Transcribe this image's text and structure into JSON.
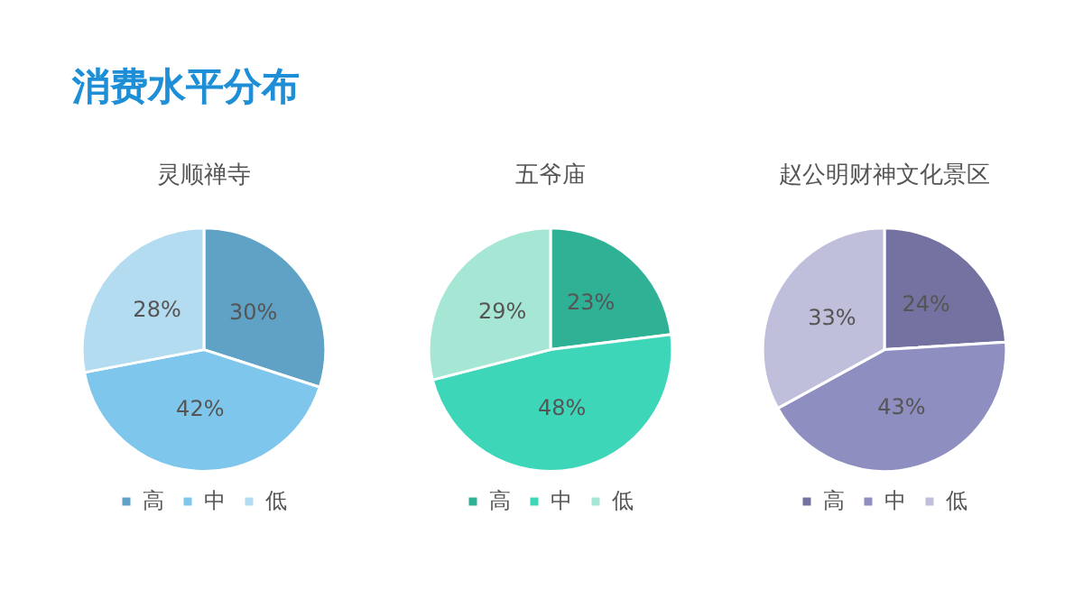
{
  "chart_data": [
    {
      "type": "pie",
      "title": "灵顺禅寺",
      "annotations": [
        "消费水平分布"
      ],
      "categories": [
        "高",
        "中",
        "低"
      ],
      "values": [
        30,
        42,
        28
      ],
      "value_labels": [
        "30%",
        "42%",
        "28%"
      ],
      "colors": [
        "#5fa2c6",
        "#7fc6ec",
        "#b4dcf0"
      ],
      "legend": "bottom"
    },
    {
      "type": "pie",
      "title": "五爷庙",
      "categories": [
        "高",
        "中",
        "低"
      ],
      "values": [
        23,
        48,
        29
      ],
      "value_labels": [
        "23%",
        "48%",
        "29%"
      ],
      "colors": [
        "#2fb196",
        "#3ed6b8",
        "#a6e6d4"
      ],
      "legend": "bottom"
    },
    {
      "type": "pie",
      "title": "赵公明财神文化景区",
      "categories": [
        "高",
        "中",
        "低"
      ],
      "values": [
        24,
        43,
        33
      ],
      "value_labels": [
        "24%",
        "43%",
        "33%"
      ],
      "colors": [
        "#7472a0",
        "#8e8ec0",
        "#bfbfdc"
      ],
      "legend": "bottom"
    }
  ]
}
